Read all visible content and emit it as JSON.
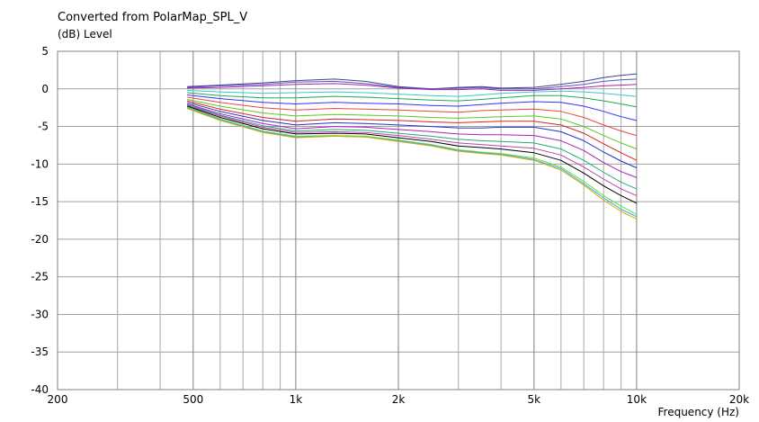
{
  "chart_data": {
    "type": "line",
    "title": "Converted from PolarMap_SPL_V",
    "ylabel": "(dB)  Level",
    "xlabel": "Frequency  (Hz)",
    "xscale": "log",
    "xlim": [
      200,
      20000
    ],
    "ylim": [
      -40,
      5
    ],
    "grid": true,
    "x_ticks": [
      {
        "value": 200,
        "label": "200"
      },
      {
        "value": 500,
        "label": "500"
      },
      {
        "value": 1000,
        "label": "1k"
      },
      {
        "value": 2000,
        "label": "2k"
      },
      {
        "value": 5000,
        "label": "5k"
      },
      {
        "value": 10000,
        "label": "10k"
      },
      {
        "value": 20000,
        "label": "20k"
      }
    ],
    "x_minor_grid": [
      300,
      400,
      600,
      700,
      800,
      900,
      3000,
      4000,
      6000,
      7000,
      8000,
      9000
    ],
    "y_ticks": [
      5,
      0,
      -5,
      -10,
      -15,
      -20,
      -25,
      -30,
      -35,
      -40
    ],
    "x": [
      480,
      600,
      800,
      1000,
      1300,
      1600,
      2000,
      2500,
      3000,
      3500,
      4000,
      5000,
      6000,
      7000,
      8000,
      9000,
      10000
    ],
    "series": [
      {
        "color": "#444488",
        "values": [
          0.3,
          0.5,
          0.8,
          1.1,
          1.3,
          1.0,
          0.3,
          0.0,
          0.2,
          0.3,
          0.1,
          0.2,
          0.6,
          1.0,
          1.5,
          1.8,
          2.0
        ]
      },
      {
        "color": "#5555cc",
        "values": [
          0.2,
          0.4,
          0.6,
          0.9,
          1.0,
          0.7,
          0.2,
          0.0,
          0.1,
          0.2,
          0.0,
          0.0,
          0.3,
          0.6,
          1.0,
          1.2,
          1.3
        ]
      },
      {
        "color": "#aa22aa",
        "values": [
          0.1,
          0.2,
          0.4,
          0.6,
          0.7,
          0.5,
          0.1,
          -0.1,
          -0.1,
          0.0,
          -0.2,
          -0.2,
          0.0,
          0.2,
          0.4,
          0.5,
          0.6
        ]
      },
      {
        "color": "#33cccc",
        "values": [
          -0.2,
          -0.4,
          -0.6,
          -0.5,
          -0.4,
          -0.5,
          -0.7,
          -0.9,
          -1.0,
          -0.8,
          -0.6,
          -0.4,
          -0.3,
          -0.4,
          -0.6,
          -0.8,
          -1.0
        ]
      },
      {
        "color": "#22aa55",
        "values": [
          -0.5,
          -0.9,
          -1.2,
          -1.2,
          -1.0,
          -1.1,
          -1.3,
          -1.5,
          -1.6,
          -1.4,
          -1.2,
          -0.9,
          -0.9,
          -1.2,
          -1.6,
          -2.0,
          -2.4
        ]
      },
      {
        "color": "#3333ff",
        "values": [
          -0.8,
          -1.3,
          -1.8,
          -2.0,
          -1.8,
          -1.9,
          -2.0,
          -2.2,
          -2.3,
          -2.1,
          -1.9,
          -1.7,
          -1.8,
          -2.3,
          -3.0,
          -3.7,
          -4.2
        ]
      },
      {
        "color": "#ee4444",
        "values": [
          -1.1,
          -1.8,
          -2.5,
          -2.8,
          -2.6,
          -2.7,
          -2.8,
          -3.0,
          -3.1,
          -2.9,
          -2.8,
          -2.7,
          -3.0,
          -3.8,
          -4.8,
          -5.6,
          -6.2
        ]
      },
      {
        "color": "#55cc22",
        "values": [
          -1.4,
          -2.3,
          -3.2,
          -3.6,
          -3.4,
          -3.5,
          -3.6,
          -3.8,
          -3.9,
          -3.8,
          -3.7,
          -3.6,
          -4.0,
          -5.0,
          -6.2,
          -7.2,
          -8.0
        ]
      },
      {
        "color": "#dd2222",
        "values": [
          -1.6,
          -2.7,
          -3.8,
          -4.3,
          -4.0,
          -4.1,
          -4.2,
          -4.4,
          -4.5,
          -4.4,
          -4.3,
          -4.3,
          -4.8,
          -5.9,
          -7.3,
          -8.5,
          -9.5
        ]
      },
      {
        "color": "#2233cc",
        "values": [
          -1.8,
          -3.0,
          -4.2,
          -4.8,
          -4.5,
          -4.6,
          -4.8,
          -5.0,
          -5.2,
          -5.2,
          -5.1,
          -5.1,
          -5.7,
          -6.9,
          -8.4,
          -9.6,
          -10.5
        ]
      },
      {
        "color": "#aa22bb",
        "values": [
          -2.0,
          -3.3,
          -4.6,
          -5.3,
          -5.0,
          -5.1,
          -5.4,
          -5.7,
          -6.0,
          -6.1,
          -6.1,
          -6.2,
          -6.9,
          -8.2,
          -9.8,
          -11.0,
          -11.8
        ]
      },
      {
        "color": "#22aa77",
        "values": [
          -2.1,
          -3.5,
          -4.9,
          -5.6,
          -5.4,
          -5.5,
          -5.9,
          -6.3,
          -6.7,
          -6.9,
          -7.0,
          -7.2,
          -8.0,
          -9.5,
          -11.1,
          -12.4,
          -13.3
        ]
      },
      {
        "color": "#bb44aa",
        "values": [
          -2.2,
          -3.6,
          -5.1,
          -5.8,
          -5.7,
          -5.8,
          -6.2,
          -6.7,
          -7.2,
          -7.4,
          -7.6,
          -7.9,
          -8.8,
          -10.4,
          -12.0,
          -13.3,
          -14.2
        ]
      },
      {
        "color": "#000000",
        "values": [
          -2.3,
          -3.8,
          -5.3,
          -6.0,
          -5.9,
          -6.0,
          -6.5,
          -7.0,
          -7.6,
          -7.8,
          -8.0,
          -8.5,
          -9.5,
          -11.2,
          -12.9,
          -14.2,
          -15.2
        ]
      },
      {
        "color": "#66dd33",
        "values": [
          -2.4,
          -4.0,
          -5.6,
          -6.3,
          -6.2,
          -6.3,
          -6.8,
          -7.4,
          -8.1,
          -8.4,
          -8.6,
          -9.2,
          -10.4,
          -12.3,
          -14.2,
          -15.6,
          -16.7
        ]
      },
      {
        "color": "#33aaee",
        "values": [
          -2.5,
          -4.1,
          -5.7,
          -6.4,
          -6.3,
          -6.4,
          -6.9,
          -7.5,
          -8.2,
          -8.5,
          -8.7,
          -9.4,
          -10.6,
          -12.6,
          -14.5,
          -16.0,
          -17.0
        ]
      },
      {
        "color": "#ddaa00",
        "values": [
          -2.6,
          -4.2,
          -5.8,
          -6.5,
          -6.3,
          -6.4,
          -7.0,
          -7.6,
          -8.3,
          -8.6,
          -8.8,
          -9.5,
          -10.8,
          -12.8,
          -14.8,
          -16.3,
          -17.3
        ]
      }
    ]
  }
}
